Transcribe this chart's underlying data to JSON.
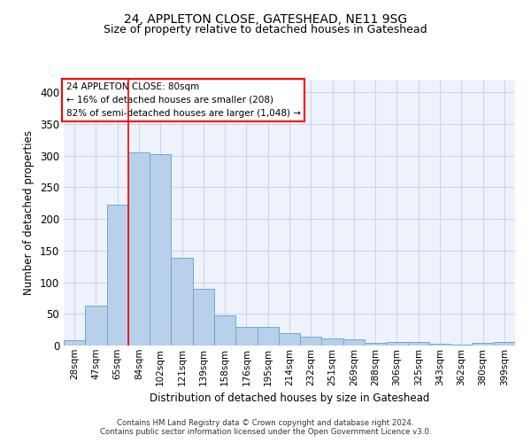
{
  "title1": "24, APPLETON CLOSE, GATESHEAD, NE11 9SG",
  "title2": "Size of property relative to detached houses in Gateshead",
  "xlabel": "Distribution of detached houses by size in Gateshead",
  "ylabel": "Number of detached properties",
  "categories": [
    "28sqm",
    "47sqm",
    "65sqm",
    "84sqm",
    "102sqm",
    "121sqm",
    "139sqm",
    "158sqm",
    "176sqm",
    "195sqm",
    "214sqm",
    "232sqm",
    "251sqm",
    "269sqm",
    "288sqm",
    "306sqm",
    "325sqm",
    "343sqm",
    "362sqm",
    "380sqm",
    "399sqm"
  ],
  "values": [
    8,
    63,
    222,
    305,
    303,
    139,
    90,
    47,
    30,
    30,
    19,
    14,
    11,
    10,
    4,
    5,
    5,
    3,
    2,
    4,
    5
  ],
  "bar_color": "#b8d0ea",
  "bar_edge_color": "#6eaad4",
  "property_label": "24 APPLETON CLOSE: 80sqm",
  "pct_smaller": "16% of detached houses are smaller (208)",
  "pct_larger": "82% of semi-detached houses are larger (1,048)",
  "redline_x": 2.5,
  "footer1": "Contains HM Land Registry data © Crown copyright and database right 2024.",
  "footer2": "Contains public sector information licensed under the Open Government Licence v3.0.",
  "ylim": [
    0,
    420
  ],
  "yticks": [
    0,
    50,
    100,
    150,
    200,
    250,
    300,
    350,
    400
  ],
  "grid_color": "#ccd6e8",
  "background_color": "#eef2fa"
}
